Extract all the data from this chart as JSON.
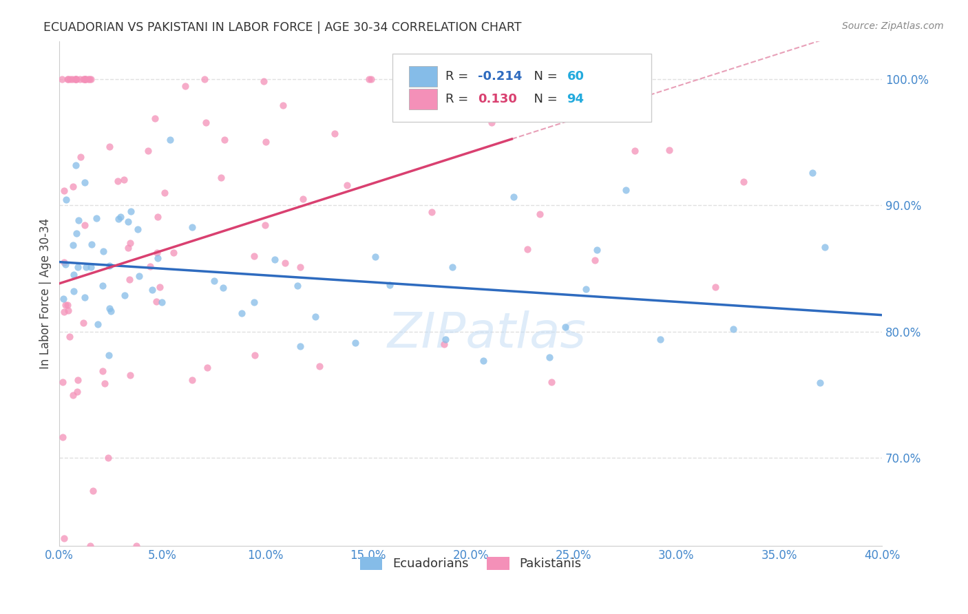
{
  "title": "ECUADORIAN VS PAKISTANI IN LABOR FORCE | AGE 30-34 CORRELATION CHART",
  "source": "Source: ZipAtlas.com",
  "ylabel": "In Labor Force | Age 30-34",
  "legend_labels": [
    "Ecuadorians",
    "Pakistanis"
  ],
  "r_ecuadorian": -0.214,
  "n_ecuadorian": 60,
  "r_pakistani": 0.13,
  "n_pakistani": 94,
  "color_ecuadorian": "#85bce8",
  "color_pakistani": "#f490b8",
  "trendline_color_ecuadorian": "#2e6bbf",
  "trendline_color_pakistani": "#d94070",
  "trendline_dashed_color": "#e8a0b8",
  "background_color": "#ffffff",
  "grid_color": "#e0e0e0",
  "title_color": "#333333",
  "axis_label_color": "#4488cc",
  "r_color_ecuadorian": "#2e6bbf",
  "r_color_pakistani": "#d94070",
  "n_color": "#22aadd",
  "watermark": "ZIPatlas",
  "xlim": [
    0.0,
    0.4
  ],
  "ylim": [
    0.63,
    1.03
  ],
  "ytick_vals": [
    0.7,
    0.8,
    0.9,
    1.0
  ],
  "ytick_labels": [
    "70.0%",
    "80.0%",
    "90.0%",
    "100.0%"
  ],
  "xtick_vals": [
    0.0,
    0.05,
    0.1,
    0.15,
    0.2,
    0.25,
    0.3,
    0.35,
    0.4
  ],
  "xtick_labels": [
    "0.0%",
    "5.0%",
    "10.0%",
    "15.0%",
    "20.0%",
    "25.0%",
    "30.0%",
    "35.0%",
    "40.0%"
  ],
  "ecu_seed": 42,
  "pak_seed": 99
}
